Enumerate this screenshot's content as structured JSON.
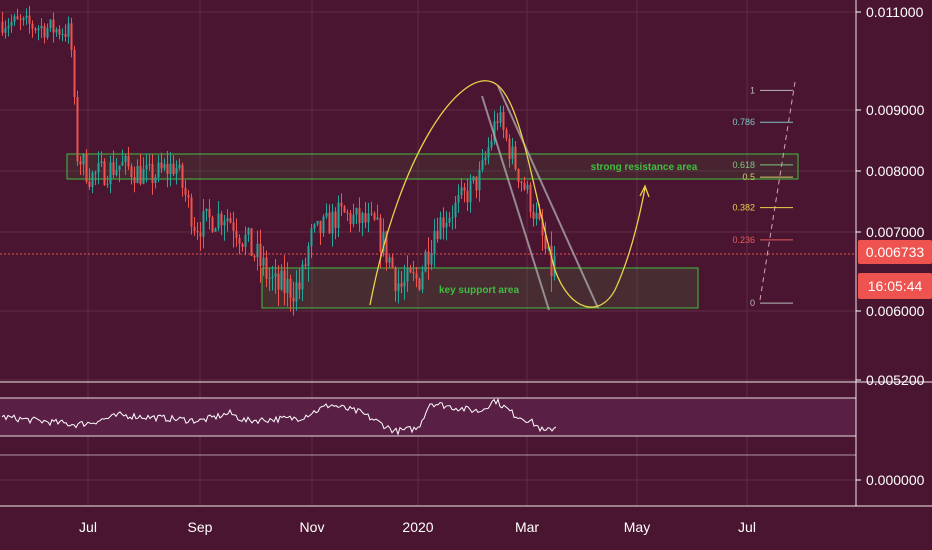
{
  "colors": {
    "background": "#4a1530",
    "grid": "#5e2a44",
    "candle_up": "#26a69a",
    "candle_down": "#ef5350",
    "axis_text": "#ffffff",
    "price_label_bg": "#ef5350",
    "resistance": "#3fbf3f",
    "support": "#3fbf3f",
    "arc": "#e8d34a",
    "channel": "#b0b0b0",
    "rsi_line": "#ffffff",
    "rsi_band": "#5a1f45"
  },
  "chart_data": [
    {
      "type": "candlestick",
      "title": "",
      "x_ticks": [
        "Jul",
        "Sep",
        "Nov",
        "2020",
        "Mar",
        "May",
        "Jul"
      ],
      "y_ticks": [
        "0.011000",
        "0.009000",
        "0.008000",
        "0.007000",
        "0.006000",
        "0.005200"
      ],
      "price_scale": [
        {
          "label": "0.011000",
          "value": 0.011
        },
        {
          "label": "0.009000",
          "value": 0.009
        },
        {
          "label": "0.008000",
          "value": 0.008
        },
        {
          "label": "0.007000",
          "value": 0.007
        },
        {
          "label": "0.006000",
          "value": 0.006
        },
        {
          "label": "0.005200",
          "value": 0.0052
        }
      ],
      "current_price": "0.006733",
      "countdown": "16:05:44",
      "close_path": [
        {
          "x": "Jun",
          "y": 0.0108
        },
        {
          "x": "late Jun",
          "y": 0.0106
        },
        {
          "x": "early Jul",
          "y": 0.0083
        },
        {
          "x": "Jul",
          "y": 0.0079
        },
        {
          "x": "mid Jul",
          "y": 0.0081
        },
        {
          "x": "Aug",
          "y": 0.0079
        },
        {
          "x": "mid Aug",
          "y": 0.0081
        },
        {
          "x": "Sep",
          "y": 0.0071
        },
        {
          "x": "mid Sep",
          "y": 0.0073
        },
        {
          "x": "Oct",
          "y": 0.0068
        },
        {
          "x": "mid Oct",
          "y": 0.0063
        },
        {
          "x": "Nov",
          "y": 0.0063
        },
        {
          "x": "early Nov",
          "y": 0.0069
        },
        {
          "x": "mid Nov",
          "y": 0.0073
        },
        {
          "x": "Dec",
          "y": 0.0071
        },
        {
          "x": "mid Dec",
          "y": 0.0063
        },
        {
          "x": "2020",
          "y": 0.0064
        },
        {
          "x": "early Jan",
          "y": 0.0071
        },
        {
          "x": "mid Jan",
          "y": 0.0074
        },
        {
          "x": "Feb",
          "y": 0.0079
        },
        {
          "x": "mid Feb",
          "y": 0.0089
        },
        {
          "x": "late Feb",
          "y": 0.0081
        },
        {
          "x": "Mar",
          "y": 0.0075
        },
        {
          "x": "mid Mar",
          "y": 0.0065
        },
        {
          "x": "latest",
          "y": 0.0067
        }
      ],
      "annotations": [
        {
          "kind": "resistance_zone",
          "text": "strong resistance area",
          "low": 0.0079,
          "high": 0.0081
        },
        {
          "kind": "support_zone",
          "text": "key support area",
          "low": 0.00601,
          "high": 0.00645
        }
      ],
      "fibonacci": [
        {
          "level": "1",
          "price": 0.0094
        },
        {
          "level": "0.786",
          "price": 0.0088
        },
        {
          "level": "0.618",
          "price": 0.0081
        },
        {
          "level": "0.5",
          "price": 0.0079
        },
        {
          "level": "0.382",
          "price": 0.0074
        },
        {
          "level": "0.236",
          "price": 0.0069
        },
        {
          "level": "0",
          "price": 0.0061
        }
      ]
    },
    {
      "type": "line",
      "title": "",
      "y_ticks": [
        "0.000000"
      ],
      "indicator_scale": [
        {
          "label": "0.000000",
          "value": 0
        }
      ],
      "rsi_band": {
        "upper": 70,
        "lower": 30
      },
      "rsi_path": [
        {
          "x": "Jun",
          "y": 50
        },
        {
          "x": "early Jul",
          "y": 42
        },
        {
          "x": "mid Jul",
          "y": 44
        },
        {
          "x": "Aug",
          "y": 52
        },
        {
          "x": "Sep",
          "y": 46
        },
        {
          "x": "mid Sep",
          "y": 50
        },
        {
          "x": "Oct",
          "y": 54
        },
        {
          "x": "mid Oct",
          "y": 46
        },
        {
          "x": "Nov",
          "y": 49
        },
        {
          "x": "mid Nov",
          "y": 63
        },
        {
          "x": "Dec",
          "y": 55
        },
        {
          "x": "mid Dec",
          "y": 35
        },
        {
          "x": "2020",
          "y": 38
        },
        {
          "x": "early Jan",
          "y": 65
        },
        {
          "x": "mid Jan",
          "y": 60
        },
        {
          "x": "Feb",
          "y": 56
        },
        {
          "x": "mid Feb",
          "y": 68
        },
        {
          "x": "late Feb",
          "y": 52
        },
        {
          "x": "Mar",
          "y": 46
        },
        {
          "x": "mid Mar",
          "y": 34
        },
        {
          "x": "latest",
          "y": 40
        }
      ]
    }
  ]
}
